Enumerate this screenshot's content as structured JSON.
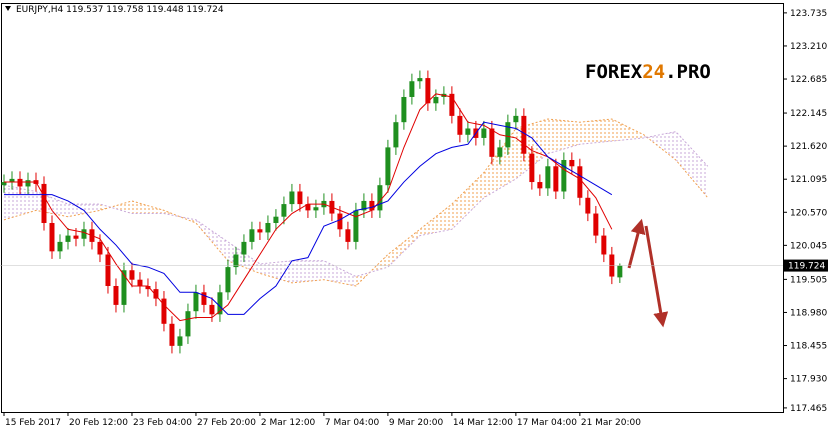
{
  "chart_data": {
    "type": "candlestick",
    "header": {
      "symbol": "EURJPY,H4",
      "open": 119.537,
      "high": 119.758,
      "low": 119.448,
      "close": 119.724
    },
    "watermark": {
      "part1": "FOREX",
      "part2": "24",
      "part3": ".PRO"
    },
    "xlim": [
      -0.5,
      97.4
    ],
    "xticks": [
      {
        "value": 0,
        "label": "15 Feb 2017"
      },
      {
        "value": 8,
        "label": "20 Feb 12:00"
      },
      {
        "value": 16,
        "label": "23 Feb 04:00"
      },
      {
        "value": 24,
        "label": "27 Feb 20:00"
      },
      {
        "value": 32,
        "label": "2 Mar 12:00"
      },
      {
        "value": 40,
        "label": "7 Mar 04:00"
      },
      {
        "value": 48,
        "label": "9 Mar 20:00"
      },
      {
        "value": 56,
        "label": "14 Mar 12:00"
      },
      {
        "value": 64,
        "label": "17 Mar 04:00"
      },
      {
        "value": 72,
        "label": "21 Mar 20:00"
      }
    ],
    "ylim": [
      117.4,
      123.86
    ],
    "yticks": [
      123.735,
      {
        "value": 123.21,
        "label": "123.210"
      },
      122.685,
      122.145,
      {
        "value": 121.62,
        "label": "121.620"
      },
      121.095,
      {
        "value": 120.57,
        "label": "120.570"
      },
      120.045,
      119.505,
      {
        "value": 118.98,
        "label": "118.980"
      },
      118.455,
      {
        "value": 117.93,
        "label": "117.930"
      },
      117.465
    ],
    "up_color": "#1f8f1f",
    "down_color": "#e00000",
    "open": [
      121.0,
      121.05,
      121.1,
      120.98,
      121.08,
      121.02,
      120.4,
      119.95,
      120.1,
      120.2,
      120.15,
      120.3,
      120.1,
      119.9,
      119.4,
      119.1,
      119.65,
      119.5,
      119.4,
      119.35,
      119.2,
      118.8,
      118.45,
      118.6,
      119.0,
      119.3,
      119.1,
      118.95,
      119.3,
      119.7,
      119.9,
      120.1,
      120.3,
      120.25,
      120.4,
      120.5,
      120.7,
      120.9,
      120.7,
      120.6,
      120.65,
      120.75,
      120.55,
      120.3,
      120.1,
      120.6,
      120.75,
      120.6,
      121.0,
      121.6,
      122.0,
      122.4,
      122.65,
      122.7,
      122.3,
      122.4,
      122.45,
      122.1,
      121.8,
      121.9,
      121.75,
      121.9,
      121.45,
      121.6,
      122.0,
      122.1,
      121.5,
      121.05,
      120.95,
      121.3,
      120.9,
      121.4,
      121.3,
      120.8,
      120.55,
      120.2,
      119.9,
      119.537
    ],
    "high": [
      121.17,
      121.22,
      121.22,
      121.2,
      121.2,
      121.14,
      120.52,
      120.22,
      120.32,
      120.32,
      120.42,
      120.42,
      120.22,
      120.02,
      119.52,
      119.77,
      119.77,
      119.62,
      119.52,
      119.47,
      119.32,
      118.92,
      118.72,
      119.12,
      119.42,
      119.42,
      119.22,
      119.42,
      119.82,
      120.02,
      120.22,
      120.42,
      120.42,
      120.52,
      120.62,
      120.82,
      121.02,
      121.02,
      120.82,
      120.77,
      120.87,
      120.87,
      120.67,
      120.42,
      120.72,
      120.87,
      120.87,
      121.12,
      121.72,
      122.12,
      122.52,
      122.77,
      122.82,
      122.82,
      122.52,
      122.57,
      122.57,
      122.22,
      122.02,
      122.02,
      122.02,
      122.02,
      121.72,
      122.12,
      122.22,
      122.22,
      121.62,
      121.17,
      121.42,
      121.42,
      121.52,
      121.52,
      121.42,
      120.92,
      120.67,
      120.32,
      120.02,
      119.758
    ],
    "low": [
      120.88,
      120.93,
      120.86,
      120.86,
      120.9,
      120.28,
      119.83,
      119.83,
      119.98,
      120.03,
      120.03,
      119.98,
      119.78,
      119.28,
      118.98,
      118.98,
      119.38,
      119.28,
      119.23,
      119.08,
      118.68,
      118.33,
      118.33,
      118.48,
      118.88,
      118.98,
      118.83,
      118.83,
      119.18,
      119.58,
      119.78,
      119.98,
      120.13,
      120.13,
      120.28,
      120.38,
      120.58,
      120.58,
      120.48,
      120.48,
      120.53,
      120.43,
      120.18,
      119.98,
      119.98,
      120.48,
      120.48,
      120.48,
      120.88,
      121.48,
      121.88,
      122.28,
      122.53,
      122.18,
      122.18,
      122.28,
      121.98,
      121.68,
      121.68,
      121.63,
      121.63,
      121.33,
      121.33,
      121.48,
      121.88,
      121.38,
      120.93,
      120.83,
      120.83,
      120.78,
      120.78,
      121.18,
      120.68,
      120.43,
      120.08,
      119.78,
      119.43,
      119.448
    ],
    "close": [
      121.05,
      121.1,
      120.98,
      121.08,
      121.02,
      120.4,
      119.95,
      120.1,
      120.2,
      120.15,
      120.3,
      120.1,
      119.9,
      119.4,
      119.1,
      119.65,
      119.5,
      119.4,
      119.35,
      119.2,
      118.8,
      118.45,
      118.6,
      119.0,
      119.3,
      119.1,
      118.95,
      119.3,
      119.7,
      119.9,
      120.1,
      120.3,
      120.25,
      120.4,
      120.5,
      120.7,
      120.9,
      120.7,
      120.6,
      120.65,
      120.75,
      120.55,
      120.3,
      120.1,
      120.6,
      120.75,
      120.6,
      121.0,
      121.6,
      122.0,
      122.4,
      122.65,
      122.7,
      122.3,
      122.4,
      122.45,
      122.1,
      121.8,
      121.9,
      121.75,
      121.9,
      121.45,
      121.6,
      122.0,
      122.1,
      121.5,
      121.05,
      120.95,
      121.3,
      120.9,
      121.4,
      121.3,
      120.8,
      120.55,
      120.2,
      119.9,
      119.55,
      119.724
    ],
    "lines_x": [
      0,
      2,
      4,
      6,
      8,
      10,
      12,
      14,
      16,
      18,
      20,
      22,
      24,
      26,
      28,
      30,
      32,
      34,
      36,
      38,
      40,
      42,
      44,
      46,
      48,
      50,
      52,
      54,
      56,
      58,
      60,
      62,
      64,
      66,
      68,
      70,
      72,
      74,
      76
    ],
    "lines": [
      {
        "color": "#e00000",
        "values": [
          121.05,
          121.05,
          121.05,
          120.6,
          120.3,
          120.25,
          120.15,
          119.75,
          119.4,
          119.4,
          119.1,
          118.85,
          118.9,
          118.9,
          119.1,
          119.5,
          119.9,
          120.3,
          120.55,
          120.7,
          120.7,
          120.6,
          120.5,
          120.6,
          120.9,
          121.6,
          122.2,
          122.45,
          122.4,
          122.0,
          121.95,
          121.8,
          121.75,
          121.55,
          121.45,
          121.25,
          121.1,
          120.8,
          120.3
        ]
      },
      {
        "color": "#0000e0",
        "values": [
          120.85,
          120.85,
          120.85,
          120.85,
          120.75,
          120.6,
          120.3,
          120.05,
          119.75,
          119.7,
          119.6,
          119.3,
          119.3,
          119.2,
          118.95,
          118.95,
          119.2,
          119.4,
          119.8,
          119.85,
          120.35,
          120.45,
          120.6,
          120.65,
          120.75,
          121.05,
          121.3,
          121.5,
          121.6,
          121.65,
          122.0,
          121.95,
          121.9,
          121.75,
          121.45,
          121.3,
          121.15,
          121.0,
          120.85
        ]
      }
    ],
    "cloud": {
      "x": [
        0,
        4,
        8,
        12,
        16,
        20,
        24,
        28,
        32,
        36,
        40,
        44,
        48,
        52,
        56,
        60,
        64,
        68,
        72,
        76,
        80,
        84,
        88
      ],
      "span_a": [
        120.45,
        120.6,
        120.5,
        120.6,
        120.75,
        120.6,
        120.4,
        119.8,
        119.6,
        119.45,
        119.5,
        119.4,
        119.9,
        120.3,
        120.7,
        121.2,
        121.9,
        122.05,
        122.0,
        122.05,
        121.8,
        121.4,
        120.8
      ],
      "span_b": [
        121.0,
        120.9,
        120.7,
        120.7,
        120.55,
        120.55,
        120.45,
        120.1,
        119.75,
        119.8,
        119.8,
        119.55,
        119.7,
        120.2,
        120.3,
        120.8,
        121.1,
        121.5,
        121.65,
        121.7,
        121.75,
        121.85,
        121.3
      ],
      "color_up": "#f0a050",
      "color_down": "#c8a8d8"
    }
  }
}
